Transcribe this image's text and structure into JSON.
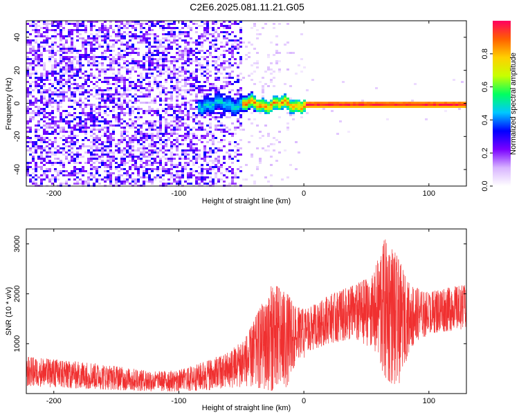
{
  "title": "C2E6.2025.081.11.21.G05",
  "chart_data": [
    {
      "type": "heatmap",
      "xlabel": "Height of straight line (km)",
      "ylabel": "Frequency (Hz)",
      "xlim": [
        -222,
        130
      ],
      "ylim": [
        -50,
        50
      ],
      "xticks": [
        -200,
        -100,
        0,
        100
      ],
      "yticks": [
        -40,
        -20,
        0,
        20,
        40
      ],
      "colorbar": {
        "label": "Normalized spectral amplitude",
        "range": [
          0,
          1
        ],
        "ticks": [
          0.0,
          0.2,
          0.4,
          0.6,
          0.8
        ],
        "colors": [
          "#ffffff",
          "#d8b4ff",
          "#7a00ff",
          "#0000ff",
          "#00c8ff",
          "#00ff60",
          "#c8ff00",
          "#ffd000",
          "#ff6000",
          "#ff0060"
        ]
      },
      "description_regions": [
        {
          "x_range": [
            -222,
            -50
          ],
          "frequency_spread": 50,
          "amplitude": [
            0.05,
            0.3
          ]
        },
        {
          "x_range": [
            -85,
            -40
          ],
          "frequency_spread": 5,
          "amplitude": [
            0.3,
            0.5
          ]
        },
        {
          "x_range": [
            -50,
            0
          ],
          "frequency_spread": 4,
          "amplitude": [
            0.4,
            0.9
          ]
        },
        {
          "x_range": [
            0,
            130
          ],
          "frequency_spread": 1.5,
          "amplitude": [
            0.8,
            1.0
          ]
        }
      ]
    },
    {
      "type": "line",
      "xlabel": "Height of straight line (km)",
      "ylabel": "SNR (10 * v/v)",
      "xlim": [
        -222,
        130
      ],
      "ylim": [
        0,
        3300
      ],
      "xticks": [
        -200,
        -100,
        0,
        100
      ],
      "yticks": [
        1000,
        2000,
        3000
      ],
      "color": "#f03030",
      "envelope": [
        {
          "x": -222,
          "min": 150,
          "max": 750
        },
        {
          "x": -200,
          "min": 120,
          "max": 700
        },
        {
          "x": -180,
          "min": 100,
          "max": 650
        },
        {
          "x": -160,
          "min": 80,
          "max": 600
        },
        {
          "x": -140,
          "min": 60,
          "max": 520
        },
        {
          "x": -120,
          "min": 40,
          "max": 450
        },
        {
          "x": -100,
          "min": 40,
          "max": 480
        },
        {
          "x": -80,
          "min": 60,
          "max": 650
        },
        {
          "x": -60,
          "min": 100,
          "max": 850
        },
        {
          "x": -45,
          "min": 150,
          "max": 1200
        },
        {
          "x": -35,
          "min": 100,
          "max": 1800
        },
        {
          "x": -25,
          "min": 50,
          "max": 2250
        },
        {
          "x": -15,
          "min": 80,
          "max": 2100
        },
        {
          "x": -5,
          "min": 550,
          "max": 1750
        },
        {
          "x": 5,
          "min": 850,
          "max": 1750
        },
        {
          "x": 20,
          "min": 1000,
          "max": 2000
        },
        {
          "x": 40,
          "min": 1100,
          "max": 2200
        },
        {
          "x": 55,
          "min": 900,
          "max": 2400
        },
        {
          "x": 65,
          "min": 300,
          "max": 3200
        },
        {
          "x": 75,
          "min": 100,
          "max": 2800
        },
        {
          "x": 85,
          "min": 900,
          "max": 2200
        },
        {
          "x": 100,
          "min": 1200,
          "max": 2050
        },
        {
          "x": 115,
          "min": 1250,
          "max": 2150
        },
        {
          "x": 130,
          "min": 1300,
          "max": 2200
        }
      ]
    }
  ]
}
